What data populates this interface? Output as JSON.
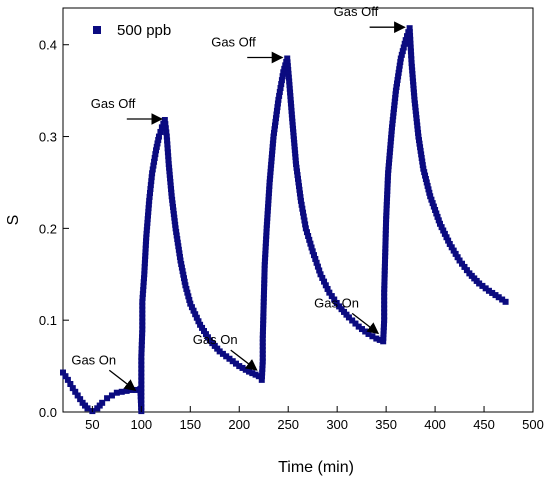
{
  "chart_data": {
    "type": "scatter",
    "xlabel": "Time (min)",
    "ylabel": "S",
    "xlim": [
      20,
      500
    ],
    "ylim": [
      0.0,
      0.44
    ],
    "xticks": [
      50,
      100,
      150,
      200,
      250,
      300,
      350,
      400,
      450,
      500
    ],
    "yticks": [
      0.0,
      0.1,
      0.2,
      0.3,
      0.4
    ],
    "ytick_labels": [
      "0.0",
      "0.1",
      "0.2",
      "0.3",
      "0.4"
    ],
    "grid": false,
    "legend_position": "top-left",
    "series": [
      {
        "name": "500 ppb",
        "color": "#0b0b80",
        "marker": "square",
        "points": [
          [
            20,
            0.043
          ],
          [
            25,
            0.035
          ],
          [
            30,
            0.026
          ],
          [
            35,
            0.018
          ],
          [
            40,
            0.01
          ],
          [
            45,
            0.004
          ],
          [
            50,
            0.001
          ],
          [
            55,
            0.004
          ],
          [
            60,
            0.01
          ],
          [
            65,
            0.015
          ],
          [
            70,
            0.018
          ],
          [
            75,
            0.021
          ],
          [
            80,
            0.022
          ],
          [
            85,
            0.023
          ],
          [
            90,
            0.024
          ],
          [
            95,
            0.024
          ],
          [
            99,
            0.025
          ],
          [
            100,
            0.001
          ],
          [
            100,
            0.03
          ],
          [
            100,
            0.06
          ],
          [
            101,
            0.09
          ],
          [
            101,
            0.12
          ],
          [
            103,
            0.15
          ],
          [
            105,
            0.19
          ],
          [
            108,
            0.23
          ],
          [
            111,
            0.26
          ],
          [
            115,
            0.285
          ],
          [
            118,
            0.3
          ],
          [
            121,
            0.31
          ],
          [
            124,
            0.318
          ],
          [
            126,
            0.3
          ],
          [
            128,
            0.27
          ],
          [
            131,
            0.235
          ],
          [
            135,
            0.2
          ],
          [
            140,
            0.165
          ],
          [
            145,
            0.138
          ],
          [
            150,
            0.118
          ],
          [
            160,
            0.095
          ],
          [
            170,
            0.078
          ],
          [
            180,
            0.066
          ],
          [
            190,
            0.058
          ],
          [
            200,
            0.05
          ],
          [
            210,
            0.044
          ],
          [
            220,
            0.039
          ],
          [
            223,
            0.035
          ],
          [
            224,
            0.055
          ],
          [
            224,
            0.08
          ],
          [
            225,
            0.12
          ],
          [
            226,
            0.16
          ],
          [
            228,
            0.2
          ],
          [
            231,
            0.25
          ],
          [
            235,
            0.3
          ],
          [
            240,
            0.34
          ],
          [
            245,
            0.37
          ],
          [
            249,
            0.385
          ],
          [
            251,
            0.36
          ],
          [
            254,
            0.32
          ],
          [
            258,
            0.27
          ],
          [
            263,
            0.23
          ],
          [
            268,
            0.2
          ],
          [
            275,
            0.175
          ],
          [
            283,
            0.15
          ],
          [
            292,
            0.13
          ],
          [
            302,
            0.115
          ],
          [
            312,
            0.103
          ],
          [
            322,
            0.093
          ],
          [
            332,
            0.085
          ],
          [
            340,
            0.08
          ],
          [
            347,
            0.077
          ],
          [
            348,
            0.1
          ],
          [
            348,
            0.13
          ],
          [
            349,
            0.17
          ],
          [
            350,
            0.21
          ],
          [
            352,
            0.26
          ],
          [
            356,
            0.31
          ],
          [
            360,
            0.35
          ],
          [
            365,
            0.385
          ],
          [
            370,
            0.405
          ],
          [
            374,
            0.418
          ],
          [
            376,
            0.38
          ],
          [
            379,
            0.34
          ],
          [
            383,
            0.3
          ],
          [
            388,
            0.265
          ],
          [
            395,
            0.235
          ],
          [
            405,
            0.205
          ],
          [
            415,
            0.183
          ],
          [
            425,
            0.165
          ],
          [
            435,
            0.151
          ],
          [
            445,
            0.14
          ],
          [
            455,
            0.132
          ],
          [
            465,
            0.125
          ],
          [
            472,
            0.12
          ]
        ]
      }
    ],
    "annotations": [
      {
        "text": "Gas Off",
        "x": 126,
        "y": 0.318
      },
      {
        "text": "Gas Off",
        "x": 249,
        "y": 0.385
      },
      {
        "text": "Gas Off",
        "x": 374,
        "y": 0.418
      },
      {
        "text": "Gas On",
        "x": 100,
        "y": 0.028
      },
      {
        "text": "Gas On",
        "x": 224,
        "y": 0.05
      },
      {
        "text": "Gas On",
        "x": 348,
        "y": 0.09
      }
    ]
  }
}
